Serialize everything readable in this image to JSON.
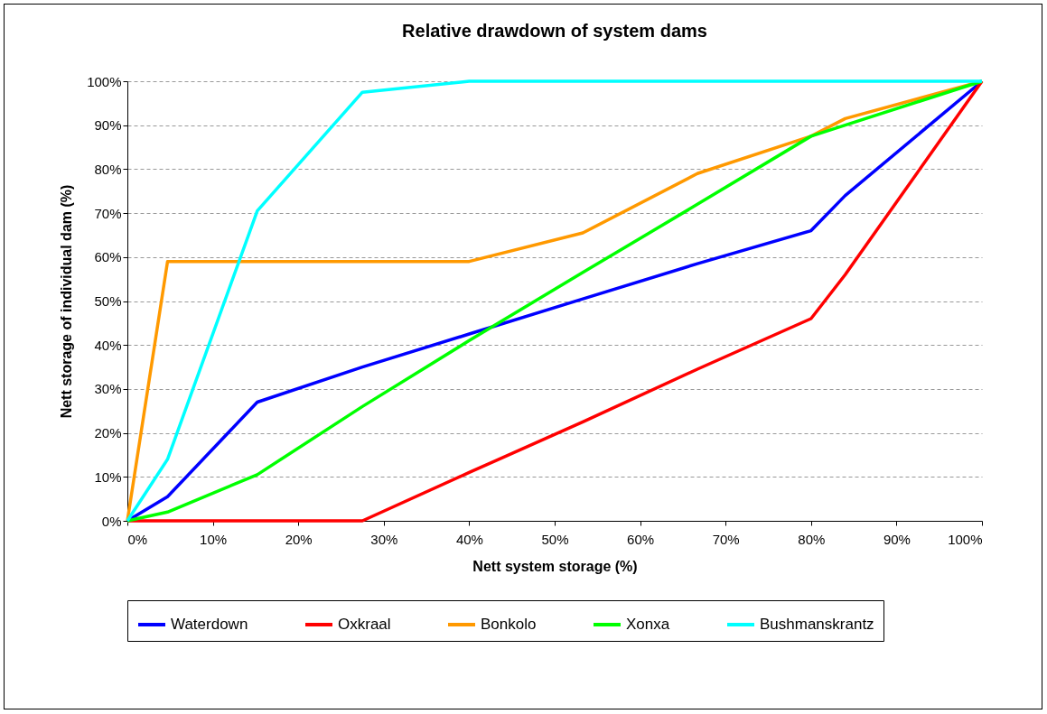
{
  "chart_data": {
    "type": "line",
    "title": "Relative drawdown of system dams",
    "xlabel": "Nett system storage (%)",
    "ylabel": "Nett storage of individual dam (%)",
    "x": [
      0,
      4.7,
      15.2,
      27.5,
      40,
      53.3,
      66.7,
      80,
      84,
      100
    ],
    "series": [
      {
        "name": "Waterdown",
        "color": "#0000ff",
        "values": [
          0,
          5.5,
          27,
          35,
          42.5,
          50.5,
          58.5,
          66,
          74,
          100
        ]
      },
      {
        "name": "Oxkraal",
        "color": "#ff0000",
        "values": [
          0,
          0,
          0,
          0,
          11,
          22.5,
          34.5,
          46,
          56,
          100
        ]
      },
      {
        "name": "Bonkolo",
        "color": "#ff9900",
        "values": [
          0,
          59,
          59,
          59,
          59,
          65.5,
          79,
          87.5,
          91.5,
          100
        ]
      },
      {
        "name": "Xonxa",
        "color": "#00ff00",
        "values": [
          0,
          2,
          10.5,
          26,
          41,
          56.5,
          72,
          87.5,
          90,
          100
        ]
      },
      {
        "name": "Bushmanskrantz",
        "color": "#00ffff",
        "values": [
          0,
          14,
          70.5,
          97.5,
          100,
          100,
          100,
          100,
          100,
          100
        ]
      }
    ],
    "xlim": [
      0,
      100
    ],
    "ylim": [
      0,
      100
    ],
    "xticks": [
      {
        "value": 0,
        "label": "0%"
      },
      {
        "value": 10,
        "label": "10%"
      },
      {
        "value": 20,
        "label": "20%"
      },
      {
        "value": 30,
        "label": "30%"
      },
      {
        "value": 40,
        "label": "40%"
      },
      {
        "value": 50,
        "label": "50%"
      },
      {
        "value": 60,
        "label": "60%"
      },
      {
        "value": 70,
        "label": "70%"
      },
      {
        "value": 80,
        "label": "80%"
      },
      {
        "value": 90,
        "label": "90%"
      },
      {
        "value": 100,
        "label": "100%"
      }
    ],
    "yticks": [
      {
        "value": 0,
        "label": "0%"
      },
      {
        "value": 10,
        "label": "10%"
      },
      {
        "value": 20,
        "label": "20%"
      },
      {
        "value": 30,
        "label": "30%"
      },
      {
        "value": 40,
        "label": "40%"
      },
      {
        "value": 50,
        "label": "50%"
      },
      {
        "value": 60,
        "label": "60%"
      },
      {
        "value": 70,
        "label": "70%"
      },
      {
        "value": 80,
        "label": "80%"
      },
      {
        "value": 90,
        "label": "90%"
      },
      {
        "value": 100,
        "label": "100%"
      }
    ],
    "grid": "y",
    "legend": "bottom",
    "marker": "none",
    "line_style": "solid"
  }
}
